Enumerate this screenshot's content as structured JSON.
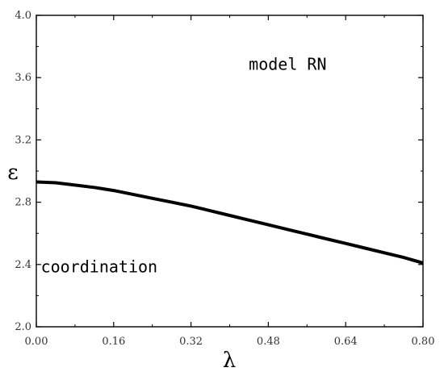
{
  "chart_data": {
    "type": "line",
    "title": "",
    "xlabel": "λ",
    "ylabel": "ε",
    "xlim": [
      0,
      0.8
    ],
    "ylim": [
      2.0,
      4.0
    ],
    "x_ticks": [
      "0.00",
      "0.16",
      "0.32",
      "0.48",
      "0.64",
      "0.80"
    ],
    "y_ticks": [
      "2.0",
      "2.4",
      "2.8",
      "3.2",
      "3.6",
      "4.0"
    ],
    "grid": false,
    "legend": "none",
    "series": [
      {
        "color": "#000000",
        "x": [
          0.0,
          0.04,
          0.08,
          0.12,
          0.16,
          0.2,
          0.24,
          0.28,
          0.32,
          0.36,
          0.4,
          0.44,
          0.48,
          0.52,
          0.56,
          0.6,
          0.64,
          0.68,
          0.72,
          0.76,
          0.8
        ],
        "y": [
          2.93,
          2.925,
          2.91,
          2.895,
          2.875,
          2.85,
          2.825,
          2.8,
          2.775,
          2.745,
          2.715,
          2.685,
          2.655,
          2.625,
          2.595,
          2.565,
          2.535,
          2.505,
          2.475,
          2.445,
          2.41
        ]
      }
    ],
    "annotations": [
      {
        "text": "model RN",
        "x": 0.52,
        "y": 3.65
      },
      {
        "text": "coordination",
        "x": 0.13,
        "y": 2.35
      }
    ]
  }
}
